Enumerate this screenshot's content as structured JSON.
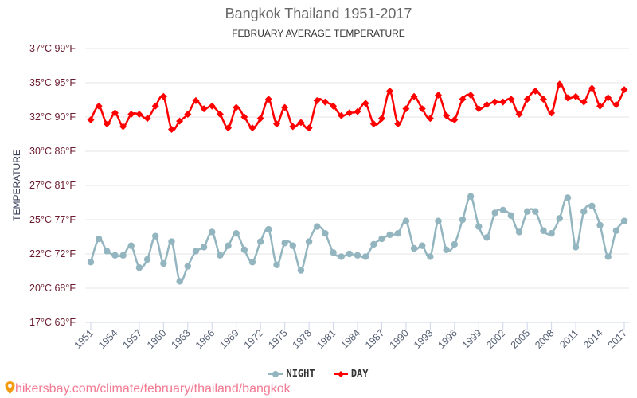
{
  "chart_data": {
    "type": "line",
    "title": "Bangkok Thailand 1951-2017",
    "subtitle": "FEBRUARY AVERAGE TEMPERATURE",
    "ylabel": "TEMPERATURE",
    "xlabel": "",
    "ylim": [
      17.5,
      37.5
    ],
    "y_ticks": [
      {
        "c": 17.5,
        "label": "17°C 63°F"
      },
      {
        "c": 20,
        "label": "20°C 68°F"
      },
      {
        "c": 22.5,
        "label": "22°C 72°F"
      },
      {
        "c": 25,
        "label": "25°C 77°F"
      },
      {
        "c": 27.5,
        "label": "27°C 81°F"
      },
      {
        "c": 30,
        "label": "30°C 86°F"
      },
      {
        "c": 32.5,
        "label": "32°C 90°F"
      },
      {
        "c": 35,
        "label": "35°C 95°F"
      },
      {
        "c": 37.5,
        "label": "37°C 99°F"
      }
    ],
    "x_start": 1951,
    "x_end": 2017,
    "x_tick_labels": [
      "1951",
      "1954",
      "1957",
      "1960",
      "1963",
      "1966",
      "1969",
      "1972",
      "1975",
      "1978",
      "1981",
      "1984",
      "1987",
      "1990",
      "1993",
      "1996",
      "1999",
      "2002",
      "2005",
      "2008",
      "2011",
      "2014",
      "2017"
    ],
    "grid": true,
    "legend_position": "bottom",
    "series": [
      {
        "name": "NIGHT",
        "color": "#93b5bf",
        "marker": "circle",
        "values": [
          21.9,
          23.6,
          22.7,
          22.4,
          22.4,
          23.1,
          21.5,
          22.1,
          23.8,
          21.8,
          23.4,
          20.5,
          21.6,
          22.7,
          23.0,
          24.1,
          22.4,
          23.1,
          24.0,
          22.8,
          21.9,
          23.4,
          24.3,
          21.7,
          23.3,
          23.1,
          21.3,
          23.4,
          24.5,
          24.0,
          22.6,
          22.3,
          22.5,
          22.4,
          22.3,
          23.2,
          23.6,
          23.9,
          24.0,
          24.9,
          22.9,
          23.1,
          22.3,
          24.9,
          22.8,
          23.2,
          25.0,
          26.7,
          24.5,
          23.7,
          25.5,
          25.7,
          25.3,
          24.1,
          25.6,
          25.6,
          24.2,
          24.0,
          25.1,
          26.6,
          23.0,
          25.6,
          26.0,
          24.6,
          22.3,
          24.2,
          24.9
        ]
      },
      {
        "name": "DAY",
        "color": "#ff0000",
        "marker": "diamond",
        "values": [
          32.3,
          33.3,
          32.0,
          32.8,
          31.8,
          32.7,
          32.7,
          32.4,
          33.3,
          34.0,
          31.6,
          32.2,
          32.7,
          33.7,
          33.1,
          33.3,
          32.7,
          31.7,
          33.2,
          32.5,
          31.7,
          32.4,
          33.8,
          32.0,
          33.2,
          31.8,
          32.1,
          31.7,
          33.7,
          33.6,
          33.3,
          32.6,
          32.8,
          32.9,
          33.5,
          32.0,
          32.4,
          34.4,
          32.0,
          33.1,
          34.0,
          33.1,
          32.4,
          34.1,
          32.6,
          32.3,
          33.8,
          34.1,
          33.1,
          33.4,
          33.6,
          33.6,
          33.8,
          32.7,
          33.8,
          34.4,
          33.8,
          32.8,
          34.9,
          33.9,
          34.0,
          33.6,
          34.6,
          33.3,
          33.9,
          33.4,
          34.5
        ]
      }
    ]
  },
  "watermark": {
    "text": "hikersbay.com/climate/february/thailand/bangkok",
    "icon": "map-pin-icon",
    "color": "#f37a92"
  }
}
